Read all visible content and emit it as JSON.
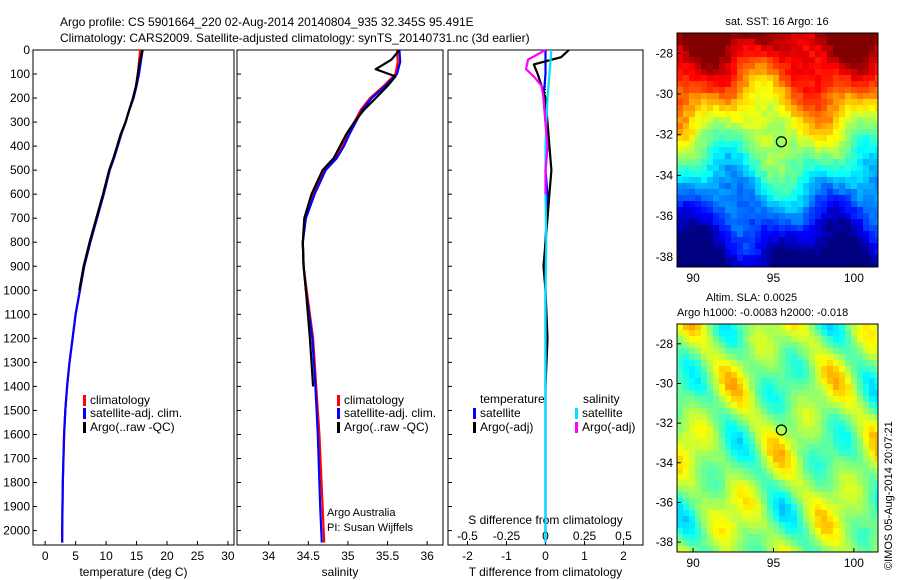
{
  "header": {
    "line1": "Argo profile: CS 5901664_220 02-Aug-2014 20140804_935 32.345S 95.491E",
    "line2": "Climatology: CARS2009. Satellite-adjusted climatology: synTS_20140731.nc (3d earlier)"
  },
  "credit": {
    "org": "Argo Australia",
    "pi": "PI: Susan Wijffels",
    "stamp": "©IMOS 05-Aug-2014 20:07:21"
  },
  "chart_data": [
    {
      "type": "line",
      "xlabel": "temperature (deg C)",
      "xlim": [
        -2,
        31
      ],
      "xticks": [
        0,
        5,
        10,
        15,
        20,
        25,
        30
      ],
      "ylim": [
        2060,
        0
      ],
      "yticks": [
        0,
        100,
        200,
        300,
        400,
        500,
        600,
        700,
        800,
        900,
        1000,
        1100,
        1200,
        1300,
        1400,
        1500,
        1600,
        1700,
        1800,
        1900,
        2000
      ],
      "legend": [
        "climatology",
        "satellite-adj. clim.",
        "Argo(..raw -QC)"
      ],
      "series": [
        {
          "name": "climatology",
          "color": "#ff0000",
          "x": [
            15.6,
            15.4,
            15.2,
            15.0,
            14.5,
            13.8,
            13.2,
            12.5,
            11.9,
            11.3,
            10.6,
            9.6,
            8.5,
            7.4,
            6.4,
            5.7,
            5.0,
            4.5,
            4.0,
            3.6,
            3.3,
            3.1,
            2.9,
            2.8,
            2.8
          ],
          "y": [
            0,
            50,
            100,
            150,
            200,
            250,
            300,
            350,
            400,
            450,
            500,
            600,
            700,
            800,
            900,
            1000,
            1100,
            1200,
            1300,
            1400,
            1500,
            1600,
            1800,
            2000,
            2050
          ]
        },
        {
          "name": "satellite-adj. clim.",
          "color": "#0000ff",
          "x": [
            16.0,
            15.7,
            15.4,
            15.0,
            14.5,
            13.8,
            13.2,
            12.5,
            11.9,
            11.3,
            10.6,
            9.6,
            8.5,
            7.4,
            6.4,
            5.7,
            5.0,
            4.5,
            4.0,
            3.6,
            3.3,
            3.1,
            2.9,
            2.8,
            2.8
          ],
          "y": [
            0,
            50,
            100,
            150,
            200,
            250,
            300,
            350,
            400,
            450,
            500,
            600,
            700,
            800,
            900,
            1000,
            1100,
            1200,
            1300,
            1400,
            1500,
            1600,
            1800,
            2000,
            2050
          ]
        },
        {
          "name": "Argo(..raw -QC)",
          "color": "#000000",
          "x": [
            16.0,
            15.5,
            15.2,
            14.9,
            14.4,
            13.8,
            13.2,
            12.4,
            11.8,
            11.2,
            10.5,
            9.5,
            8.4,
            7.3,
            6.3,
            5.6
          ],
          "y": [
            0,
            50,
            100,
            150,
            200,
            250,
            300,
            350,
            400,
            450,
            500,
            600,
            700,
            800,
            900,
            1000
          ]
        }
      ]
    },
    {
      "type": "line",
      "xlabel": "salinity",
      "xlim": [
        33.6,
        36.2
      ],
      "xticks": [
        34,
        34.5,
        35,
        35.5,
        36
      ],
      "ylim": [
        2060,
        0
      ],
      "legend": [
        "climatology",
        "satellite-adj. clim.",
        "Argo(..raw -QC)"
      ],
      "series": [
        {
          "name": "climatology",
          "color": "#ff0000",
          "x": [
            35.62,
            35.63,
            35.6,
            35.45,
            35.28,
            35.16,
            35.08,
            35.0,
            34.92,
            34.84,
            34.7,
            34.56,
            34.46,
            34.43,
            34.44,
            34.48,
            34.52,
            34.56,
            34.6,
            34.64,
            34.68,
            34.7
          ],
          "y": [
            0,
            50,
            100,
            150,
            200,
            250,
            300,
            350,
            400,
            450,
            500,
            600,
            700,
            800,
            900,
            1000,
            1100,
            1200,
            1400,
            1600,
            1900,
            2050
          ]
        },
        {
          "name": "satellite-adj. clim.",
          "color": "#0000ff",
          "x": [
            35.65,
            35.66,
            35.62,
            35.47,
            35.3,
            35.18,
            35.1,
            35.02,
            34.95,
            34.86,
            34.72,
            34.58,
            34.47,
            34.43,
            34.44,
            34.47,
            34.51,
            34.55,
            34.59,
            34.62,
            34.65,
            34.67
          ],
          "y": [
            0,
            50,
            100,
            150,
            200,
            250,
            300,
            350,
            400,
            450,
            500,
            600,
            700,
            800,
            900,
            1000,
            1100,
            1200,
            1400,
            1600,
            1900,
            2050
          ]
        },
        {
          "name": "Argo(..raw -QC)",
          "color": "#000000",
          "x": [
            35.65,
            35.55,
            35.35,
            35.6,
            35.5,
            35.35,
            35.2,
            35.08,
            34.98,
            34.9,
            34.82,
            34.68,
            34.54,
            34.45,
            34.43,
            34.44,
            34.47,
            34.52,
            34.56
          ],
          "y": [
            0,
            40,
            80,
            110,
            150,
            200,
            250,
            300,
            350,
            400,
            450,
            500,
            600,
            700,
            800,
            900,
            1000,
            1200,
            1400
          ]
        }
      ]
    },
    {
      "type": "line",
      "xlabel": "T difference from climatology",
      "xlim": [
        -2.5,
        2.5
      ],
      "xticks": [
        -2,
        -1,
        0,
        1,
        2
      ],
      "ylim": [
        2060,
        0
      ],
      "top_axis_label": "S difference from climatology",
      "top_ticks": [
        -0.5,
        -0.25,
        0,
        0.25,
        0.5
      ],
      "top_tick_labels": [
        "-0.5",
        "-0.25",
        "0",
        "0.25",
        "0.5"
      ],
      "legend_titles": [
        "temperature",
        "salinity"
      ],
      "legend": [
        "satellite",
        "Argo(-adj)",
        "satellite",
        "Argo(-adj)"
      ],
      "series": [
        {
          "name": "temperature satellite",
          "color": "#0000ff",
          "x": [
            0.0,
            0.0,
            -0.05,
            0.0,
            0.05,
            0.0,
            0.05,
            0.0,
            0.0,
            0.0,
            0.0,
            0.0
          ],
          "y": [
            0,
            100,
            200,
            300,
            400,
            500,
            600,
            800,
            1000,
            1200,
            1600,
            2050
          ]
        },
        {
          "name": "temperature Argo(-adj)",
          "color": "#000000",
          "x": [
            0.6,
            0.4,
            -0.3,
            -0.2,
            -0.1,
            0.0,
            0.05,
            0.1,
            0.15,
            0.1,
            0.05,
            0.0,
            -0.05,
            0.0,
            0.05,
            0.0
          ],
          "y": [
            0,
            30,
            60,
            100,
            150,
            200,
            300,
            400,
            500,
            600,
            700,
            800,
            900,
            1000,
            1200,
            1400
          ]
        },
        {
          "name": "salinity satellite",
          "color": "#00e0ff",
          "x": [
            0.15,
            0.1,
            0.05,
            0.02,
            0.0,
            0.0,
            0.02,
            0.0,
            0.0,
            0.0,
            0.0
          ],
          "y": [
            0,
            100,
            200,
            300,
            400,
            600,
            800,
            1000,
            1400,
            1800,
            2050
          ]
        },
        {
          "name": "salinity Argo(-adj)",
          "color": "#ff00ff",
          "x": [
            0.0,
            -0.45,
            -0.5,
            -0.3,
            -0.1,
            -0.05,
            0.0,
            0.05,
            0.0,
            0.0
          ],
          "y": [
            0,
            40,
            80,
            110,
            150,
            200,
            300,
            400,
            500,
            600
          ]
        }
      ]
    },
    {
      "type": "heatmap",
      "title": "sat. SST: 16 Argo: 16",
      "xticks": [
        90,
        95,
        100
      ],
      "yticks": [
        -28,
        -30,
        -32,
        -34,
        -36,
        -38
      ],
      "marker": {
        "lon": 95.491,
        "lat": -32.345
      }
    },
    {
      "type": "heatmap",
      "title": "Altim. SLA: 0.0025",
      "subtitle": "Argo h1000: -0.0083 h2000: -0.018",
      "xticks": [
        90,
        95,
        100
      ],
      "yticks": [
        -28,
        -30,
        -32,
        -34,
        -36,
        -38
      ],
      "marker": {
        "lon": 95.491,
        "lat": -32.345
      }
    }
  ]
}
